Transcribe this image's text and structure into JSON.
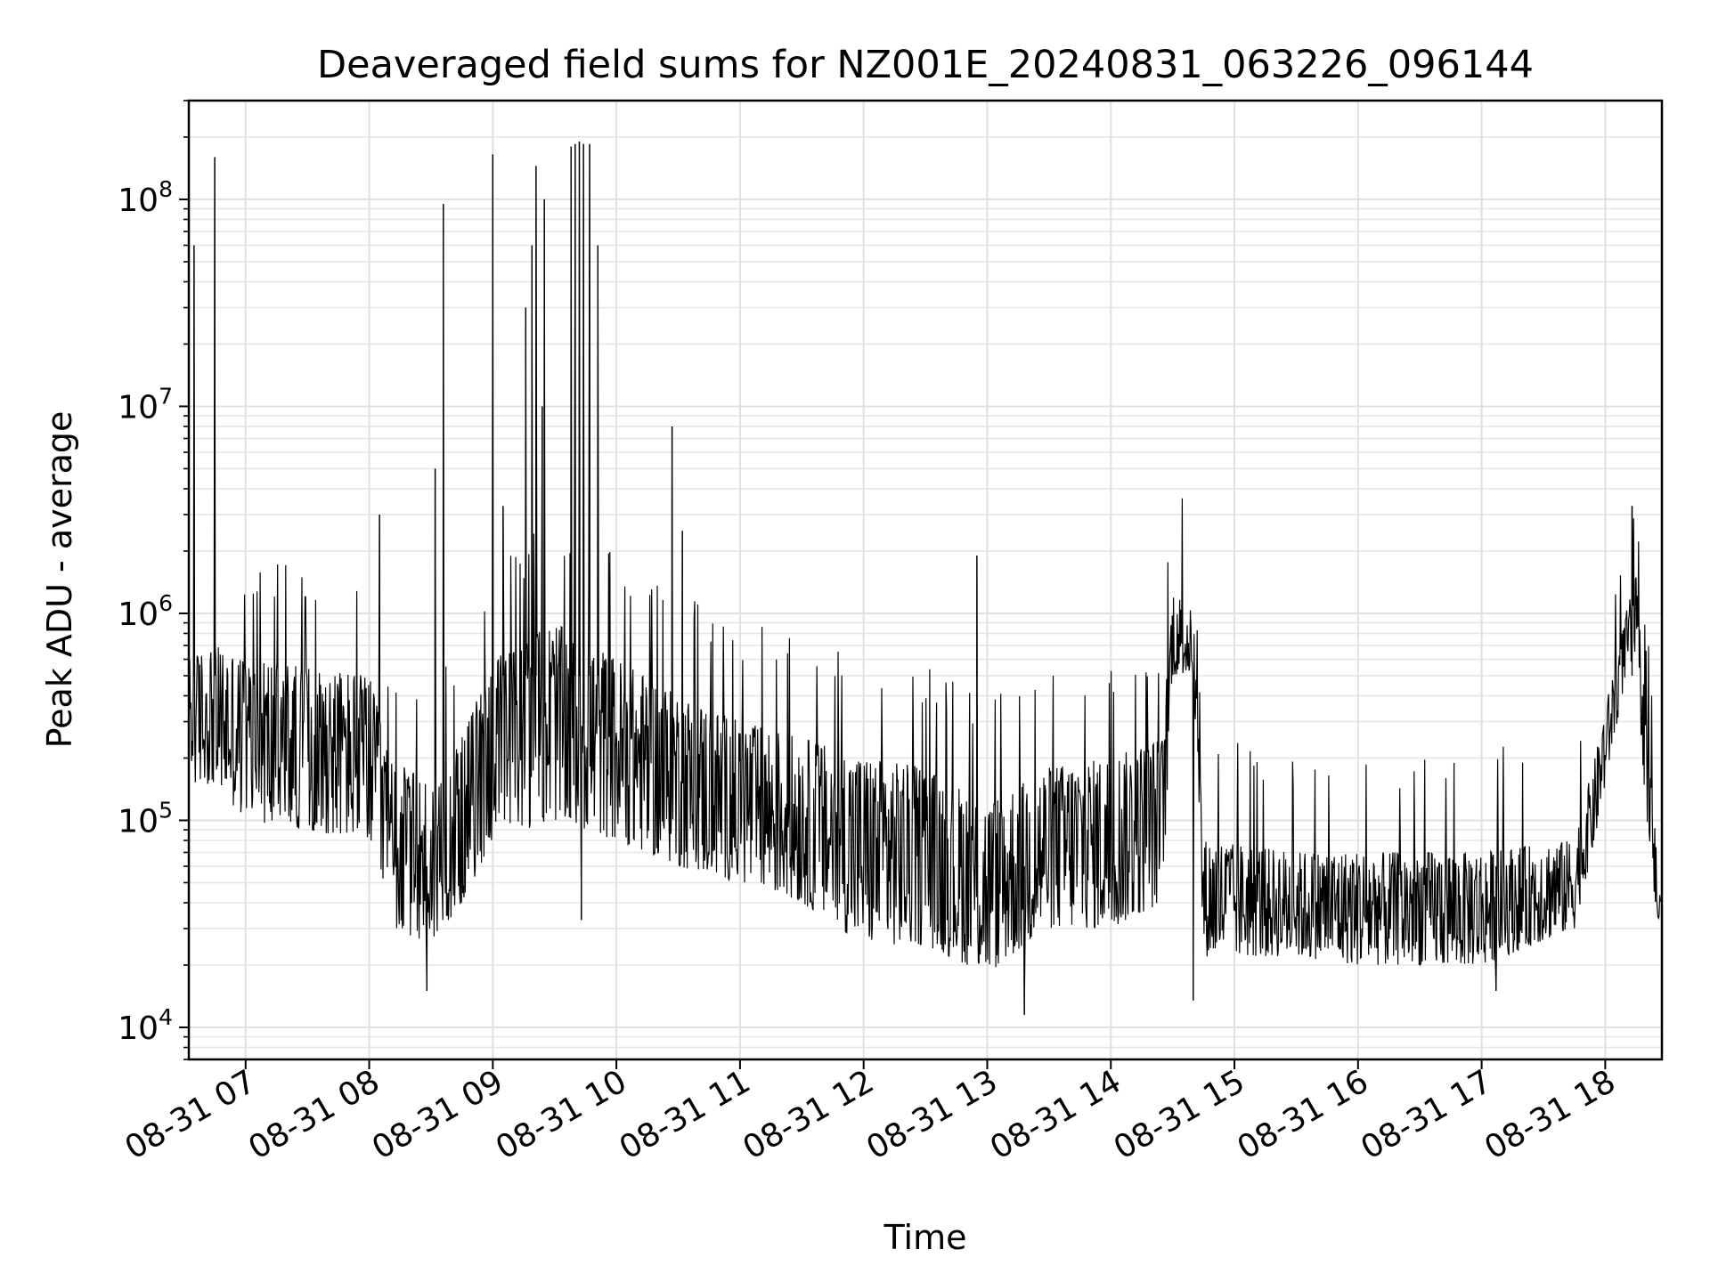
{
  "chart_data": {
    "type": "line",
    "title": "Deaveraged field sums for NZ001E_20240831_063226_096144",
    "xlabel": "Time",
    "ylabel": "Peak ADU - average",
    "y_scale": "log",
    "xlim": [
      "2024-08-31 06:32:26",
      "2024-08-31 18:27:30"
    ],
    "ylim": [
      7000,
      300000000
    ],
    "grid": true,
    "legend": "none",
    "x_tick_labels": [
      "08-31 07",
      "08-31 08",
      "08-31 09",
      "08-31 10",
      "08-31 11",
      "08-31 12",
      "08-31 13",
      "08-31 14",
      "08-31 15",
      "08-31 16",
      "08-31 17",
      "08-31 18"
    ],
    "x_tick_times": [
      "2024-08-31 07:00",
      "2024-08-31 08:00",
      "2024-08-31 09:00",
      "2024-08-31 10:00",
      "2024-08-31 11:00",
      "2024-08-31 12:00",
      "2024-08-31 13:00",
      "2024-08-31 14:00",
      "2024-08-31 15:00",
      "2024-08-31 16:00",
      "2024-08-31 17:00",
      "2024-08-31 18:00"
    ],
    "y_ticks": [
      {
        "base": "10",
        "exp": "4",
        "value": 10000
      },
      {
        "base": "10",
        "exp": "5",
        "value": 100000
      },
      {
        "base": "10",
        "exp": "6",
        "value": 1000000
      },
      {
        "base": "10",
        "exp": "7",
        "value": 10000000
      },
      {
        "base": "10",
        "exp": "8",
        "value": 100000000
      }
    ],
    "series": [
      {
        "color": "#000000",
        "envelope": [
          {
            "t": "2024-08-31 06:32",
            "low": 150000,
            "high": 600000
          },
          {
            "t": "2024-08-31 06:45",
            "low": 150000,
            "high": 700000
          },
          {
            "t": "2024-08-31 07:00",
            "low": 100000,
            "high": 600000
          },
          {
            "t": "2024-08-31 07:30",
            "low": 90000,
            "high": 550000
          },
          {
            "t": "2024-08-31 08:00",
            "low": 80000,
            "high": 500000
          },
          {
            "t": "2024-08-31 08:10",
            "low": 30000,
            "high": 200000
          },
          {
            "t": "2024-08-31 08:30",
            "low": 25000,
            "high": 150000
          },
          {
            "t": "2024-08-31 08:45",
            "low": 40000,
            "high": 250000
          },
          {
            "t": "2024-08-31 09:00",
            "low": 80000,
            "high": 600000
          },
          {
            "t": "2024-08-31 09:30",
            "low": 100000,
            "high": 900000
          },
          {
            "t": "2024-08-31 10:00",
            "low": 80000,
            "high": 600000
          },
          {
            "t": "2024-08-31 10:30",
            "low": 60000,
            "high": 400000
          },
          {
            "t": "2024-08-31 11:00",
            "low": 50000,
            "high": 300000
          },
          {
            "t": "2024-08-31 11:30",
            "low": 40000,
            "high": 250000
          },
          {
            "t": "2024-08-31 12:00",
            "low": 25000,
            "high": 200000
          },
          {
            "t": "2024-08-31 12:30",
            "low": 25000,
            "high": 180000
          },
          {
            "t": "2024-08-31 13:00",
            "low": 18000,
            "high": 120000
          },
          {
            "t": "2024-08-31 13:30",
            "low": 30000,
            "high": 180000
          },
          {
            "t": "2024-08-31 14:00",
            "low": 30000,
            "high": 200000
          },
          {
            "t": "2024-08-31 14:25",
            "low": 40000,
            "high": 250000
          },
          {
            "t": "2024-08-31 14:30",
            "low": 500000,
            "high": 1300000
          },
          {
            "t": "2024-08-31 14:40",
            "low": 500000,
            "high": 1000000
          },
          {
            "t": "2024-08-31 14:45",
            "low": 22000,
            "high": 80000
          },
          {
            "t": "2024-08-31 15:30",
            "low": 22000,
            "high": 70000
          },
          {
            "t": "2024-08-31 16:00",
            "low": 20000,
            "high": 70000
          },
          {
            "t": "2024-08-31 16:30",
            "low": 20000,
            "high": 70000
          },
          {
            "t": "2024-08-31 17:00",
            "low": 20000,
            "high": 70000
          },
          {
            "t": "2024-08-31 17:45",
            "low": 30000,
            "high": 80000
          },
          {
            "t": "2024-08-31 17:55",
            "low": 80000,
            "high": 200000
          },
          {
            "t": "2024-08-31 18:10",
            "low": 500000,
            "high": 1000000
          },
          {
            "t": "2024-08-31 18:15",
            "low": 600000,
            "high": 1500000
          },
          {
            "t": "2024-08-31 18:20",
            "low": 100000,
            "high": 300000
          },
          {
            "t": "2024-08-31 18:27",
            "low": 20000,
            "high": 40000
          }
        ],
        "spikes": [
          {
            "t": "2024-08-31 06:35",
            "value": 60000000
          },
          {
            "t": "2024-08-31 06:45",
            "value": 160000000
          },
          {
            "t": "2024-08-31 08:05",
            "value": 3000000
          },
          {
            "t": "2024-08-31 08:32",
            "value": 5000000
          },
          {
            "t": "2024-08-31 08:36",
            "value": 95000000
          },
          {
            "t": "2024-08-31 09:00",
            "value": 165000000
          },
          {
            "t": "2024-08-31 09:05",
            "value": 3300000
          },
          {
            "t": "2024-08-31 09:16",
            "value": 30000000
          },
          {
            "t": "2024-08-31 09:19",
            "value": 60000000
          },
          {
            "t": "2024-08-31 09:21",
            "value": 145000000
          },
          {
            "t": "2024-08-31 09:24",
            "value": 10000000
          },
          {
            "t": "2024-08-31 09:25",
            "value": 100000000
          },
          {
            "t": "2024-08-31 09:38",
            "value": 180000000
          },
          {
            "t": "2024-08-31 09:40",
            "value": 185000000
          },
          {
            "t": "2024-08-31 09:42",
            "value": 190000000
          },
          {
            "t": "2024-08-31 09:44",
            "value": 185000000
          },
          {
            "t": "2024-08-31 09:47",
            "value": 185000000
          },
          {
            "t": "2024-08-31 09:51",
            "value": 60000000
          },
          {
            "t": "2024-08-31 10:27",
            "value": 8000000
          },
          {
            "t": "2024-08-31 10:32",
            "value": 2500000
          },
          {
            "t": "2024-08-31 12:55",
            "value": 1900000
          },
          {
            "t": "2024-08-31 18:13",
            "value": 3300000
          }
        ],
        "dips": [
          {
            "t": "2024-08-31 08:28",
            "value": 15000
          },
          {
            "t": "2024-08-31 09:43",
            "value": 33000
          },
          {
            "t": "2024-08-31 13:18",
            "value": 11500
          },
          {
            "t": "2024-08-31 14:40",
            "value": 13500
          },
          {
            "t": "2024-08-31 17:07",
            "value": 15000
          }
        ]
      }
    ]
  }
}
